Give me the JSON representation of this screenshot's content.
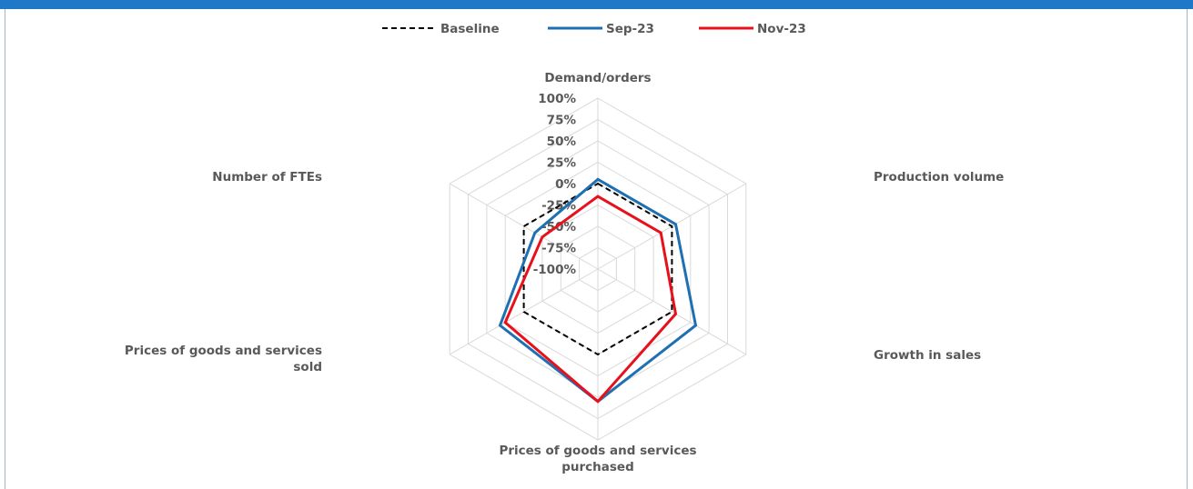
{
  "chart_data": {
    "type": "radar",
    "title": "",
    "axes": [
      "Demand/orders",
      "Production volume",
      "Growth in sales",
      "Prices of goods and services purchased",
      "Prices of goods and services sold",
      "Number of FTEs"
    ],
    "axis_label_lines": [
      [
        "Demand/orders"
      ],
      [
        "Production volume"
      ],
      [
        "Growth in sales"
      ],
      [
        "Prices of goods and services",
        "purchased"
      ],
      [
        "Prices of goods and services",
        "sold"
      ],
      [
        "Number of FTEs"
      ]
    ],
    "rlim": [
      -100,
      100
    ],
    "ticks": [
      "100%",
      "75%",
      "50%",
      "25%",
      "0%",
      "-25%",
      "-50%",
      "-75%",
      "-100%"
    ],
    "tick_values": [
      100,
      75,
      50,
      25,
      0,
      -25,
      -50,
      -75,
      -100
    ],
    "legend_position": "top",
    "series": [
      {
        "name": "Baseline",
        "values": [
          0,
          0,
          0,
          0,
          0,
          0
        ],
        "color": "#000000",
        "dash": true
      },
      {
        "name": "Sep-23",
        "values": [
          5,
          5,
          32,
          55,
          32,
          -15
        ],
        "color": "#1f6fb3",
        "dash": false
      },
      {
        "name": "Nov-23",
        "values": [
          -15,
          -15,
          5,
          55,
          25,
          -25
        ],
        "color": "#e8101a",
        "dash": false
      }
    ]
  }
}
